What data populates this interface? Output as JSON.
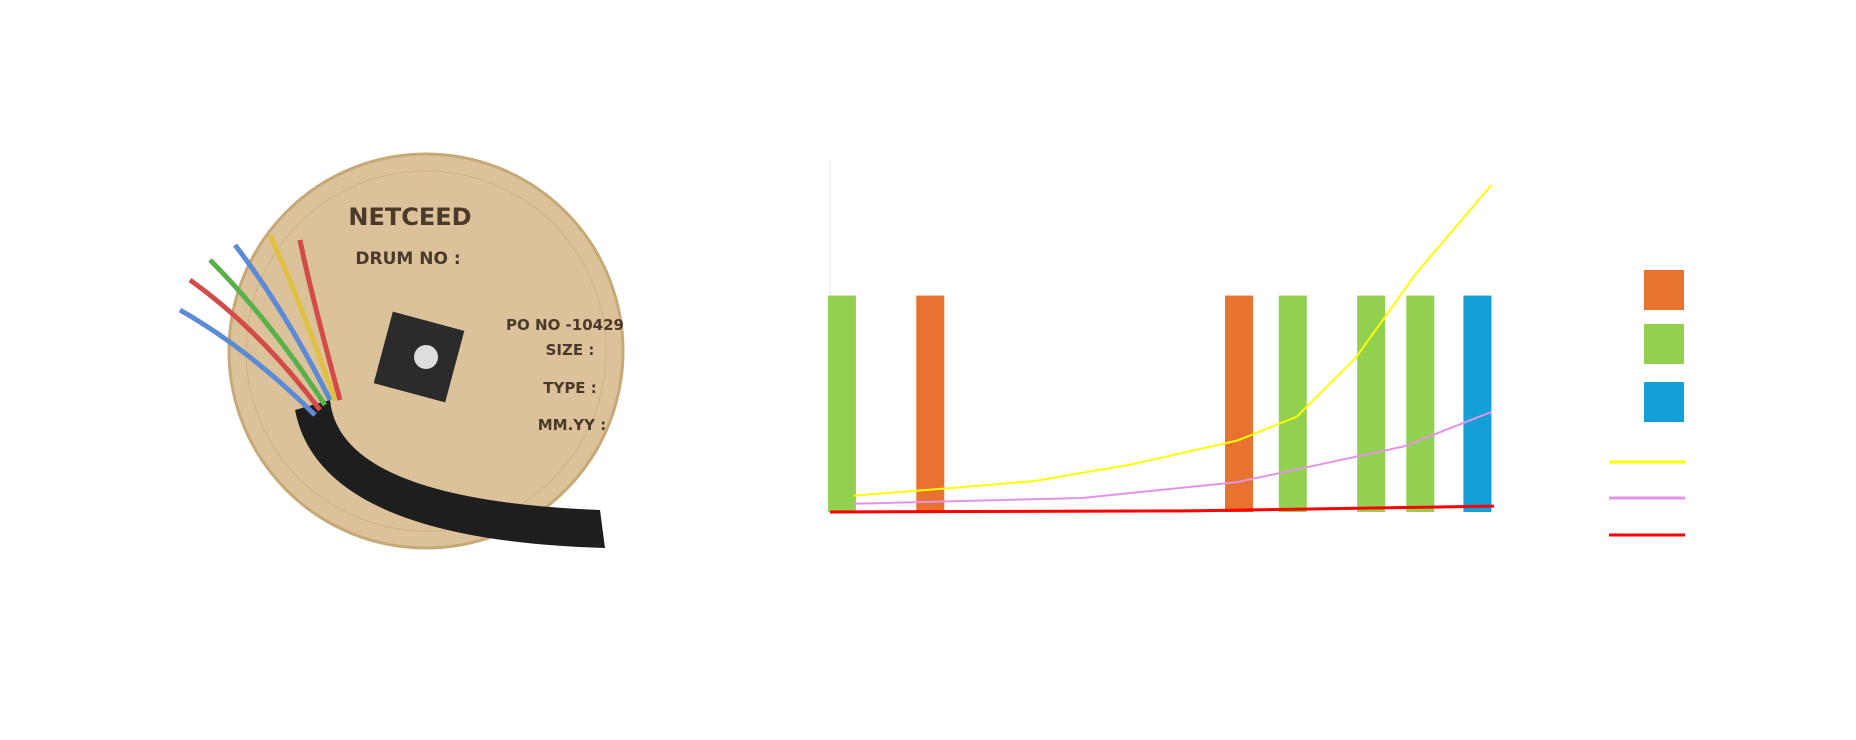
{
  "chart_data": {
    "type": "bar-line",
    "xlim": [
      0,
      100
    ],
    "ylim": [
      0,
      6
    ],
    "series": [
      {
        "kind": "bar",
        "color": "#e87331",
        "x": [
          15.1,
          61.6
        ],
        "values": [
          3.7,
          3.7
        ]
      },
      {
        "kind": "bar",
        "color": "#92d050",
        "x": [
          1.8,
          69.7,
          81.5,
          88.9
        ],
        "values": [
          3.7,
          3.7,
          3.7,
          3.7
        ]
      },
      {
        "kind": "bar",
        "color": "#12a0d7",
        "x": [
          97.5
        ],
        "values": [
          3.7
        ]
      },
      {
        "kind": "line",
        "color": "#ffff00",
        "x": [
          3.6,
          18.3,
          30.8,
          45.2,
          61.3,
          70.3,
          79.2,
          88.2,
          99.6
        ],
        "values": [
          0.28,
          0.41,
          0.53,
          0.81,
          1.22,
          1.63,
          2.64,
          4.07,
          5.59
        ]
      },
      {
        "kind": "line",
        "color": "#e394e6",
        "x": [
          3.6,
          38.0,
          61.3,
          72.0,
          86.4,
          99.6
        ],
        "values": [
          0.14,
          0.24,
          0.51,
          0.77,
          1.12,
          1.71
        ]
      },
      {
        "kind": "line",
        "color": "#ff0000",
        "x": [
          0,
          54.1,
          100
        ],
        "values": [
          0,
          0.02,
          0.1
        ]
      }
    ]
  },
  "image_texts": {
    "brand": "NETCEED",
    "drum": "DRUM NO :",
    "po": "PO NO -10429",
    "size": "SIZE :",
    "type": "TYPE :",
    "date": "MM.YY :"
  }
}
